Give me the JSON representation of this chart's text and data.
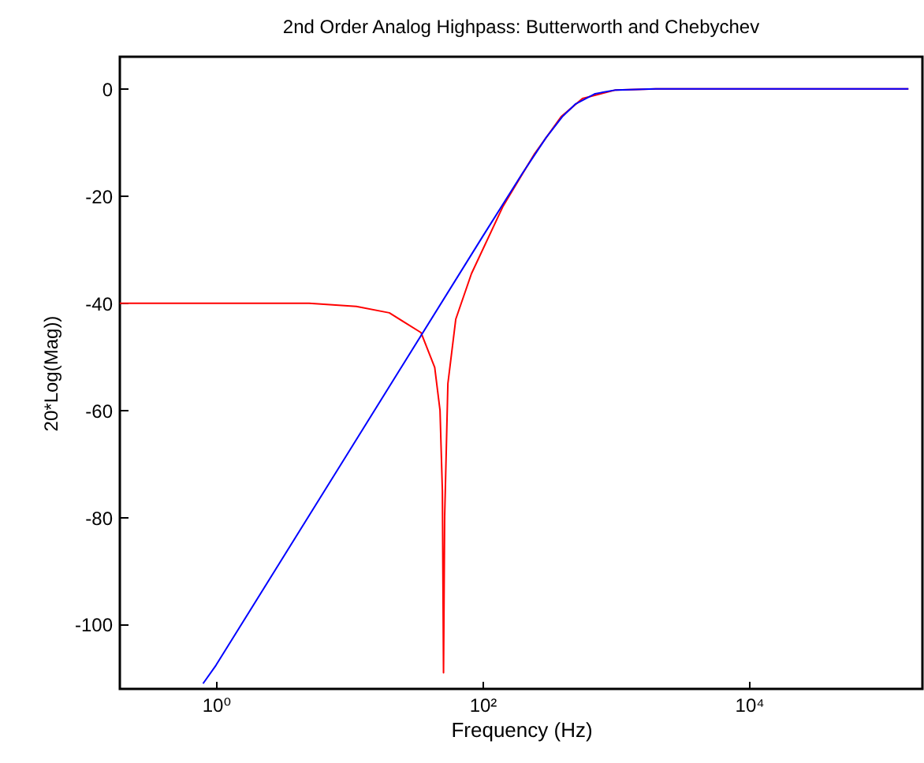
{
  "chart_data": {
    "type": "line",
    "title": "2nd Order Analog Highpass: Butterworth and Chebychev",
    "xlabel": "Frequency (Hz)",
    "ylabel": "20*Log(Mag))",
    "log": "x",
    "grid": false,
    "legend": false,
    "xlim": [
      0.19,
      200000
    ],
    "xticks": [
      {
        "value": 1,
        "label": "10⁰"
      },
      {
        "value": 100,
        "label": "10²"
      },
      {
        "value": 10000,
        "label": "10⁴"
      }
    ],
    "ylim": [
      -112,
      6
    ],
    "yticks": [
      -100,
      -80,
      -60,
      -40,
      -20,
      0
    ],
    "series": [
      {
        "color": "#ff0000",
        "x": [
          0.19,
          5,
          11.3,
          20,
          34.6,
          43.8,
          48,
          50,
          51,
          52,
          55,
          63,
          82.6,
          142.6,
          246,
          389,
          562,
          1000,
          2000,
          157000
        ],
        "values": [
          -40,
          -40,
          -40.6,
          -41.8,
          -45.5,
          -52,
          -60,
          -75,
          -109,
          -80,
          -55,
          -43,
          -34.5,
          -21.9,
          -12.1,
          -5.2,
          -1.8,
          -0.2,
          0,
          0
        ]
      },
      {
        "color": "#0000ff",
        "x": [
          0.8,
          1,
          10,
          100,
          200,
          300,
          400,
          500,
          700,
          1000,
          2000,
          157000
        ],
        "values": [
          -111,
          -107.6,
          -67.6,
          -27.6,
          -15.7,
          -9.1,
          -5.1,
          -2.8,
          -0.9,
          -0.2,
          0,
          0
        ]
      }
    ]
  }
}
